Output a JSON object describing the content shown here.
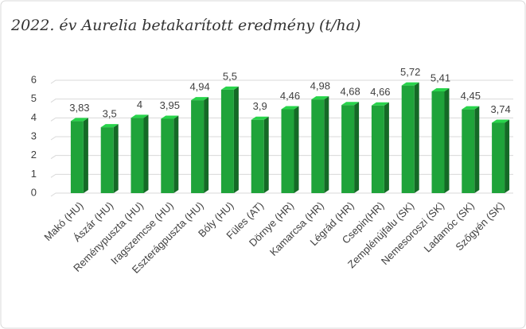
{
  "chart_data": {
    "type": "bar3d",
    "title": "2022. év Aurelia betakarított eredmény (t/ha)",
    "categories": [
      "Makó (HU)",
      "Ászár (HU)",
      "Reménypuszta (HU)",
      "Iragszemcse (HU)",
      "Eszterágpuszta (HU)",
      "Bóly (HU)",
      "Füles (AT)",
      "Dörnye (HR)",
      "Kamarcsa (HR)",
      "Légrád (HR)",
      "Csepin(HR)",
      "Zemplénújfalu (SK)",
      "Nemesoroszi (SK)",
      "Ladamóc (SK)",
      "Szőgyén (SK)"
    ],
    "values": [
      3.83,
      3.5,
      4,
      3.95,
      4.94,
      5.5,
      3.9,
      4.46,
      4.98,
      4.68,
      4.66,
      5.72,
      5.41,
      4.45,
      3.74
    ],
    "value_labels": [
      "3,83",
      "3,5",
      "4",
      "3,95",
      "4,94",
      "5,5",
      "3,9",
      "4,46",
      "4,98",
      "4,68",
      "4,66",
      "5,72",
      "5,41",
      "4,45",
      "3,74"
    ],
    "color": "#1fa33a",
    "ylim": [
      0,
      6
    ],
    "yticks": [
      0,
      1,
      2,
      3,
      4,
      5,
      6
    ],
    "grid": true
  }
}
